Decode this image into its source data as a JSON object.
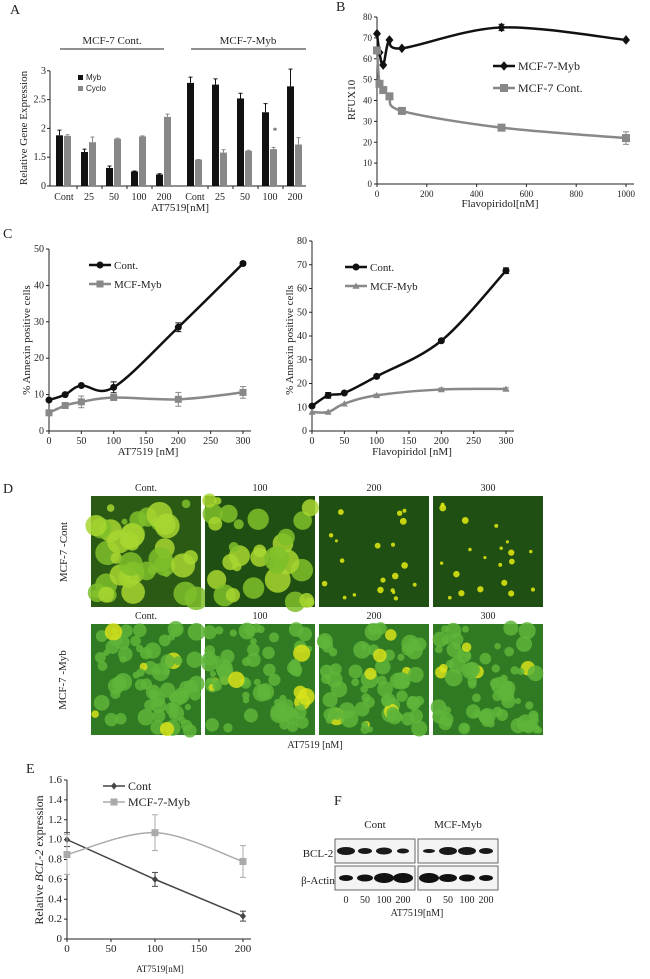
{
  "panel_labels": [
    "A",
    "B",
    "C",
    "D",
    "E",
    "F"
  ],
  "colors": {
    "black": "#111111",
    "gray": "#888888",
    "lightgray": "#aaaaaa",
    "green": "#1f5a16"
  },
  "chart_data": [
    {
      "id": "A",
      "type": "bar",
      "title": "",
      "groups": [
        "MCF-7 Cont.",
        "MCF-7-Myb"
      ],
      "categories": [
        "Cont",
        "25",
        "50",
        "100",
        "200"
      ],
      "ylabel": "Relative Gene Expression",
      "xlabel": "AT7519[nM]",
      "yticks": [
        "0",
        "1.5",
        "2",
        "2.5",
        "3"
      ],
      "legend": [
        "Myb",
        "Cyclo"
      ],
      "legend_position": "top-left",
      "annotation": "*",
      "series": [
        {
          "name": "Myb",
          "group": "MCF-7 Cont.",
          "values": [
            1.88,
            1.59,
            0.94,
            0.76,
            0.6
          ],
          "errors": [
            0.09,
            0.05,
            0.1,
            0.02,
            0.04
          ]
        },
        {
          "name": "Cyclo",
          "group": "MCF-7 Cont.",
          "values": [
            1.87,
            1.76,
            1.82,
            1.86,
            2.2
          ],
          "errors": [
            0.02,
            0.09,
            0.01,
            0.01,
            0.05
          ]
        },
        {
          "name": "Myb",
          "group": "MCF-7-Myb",
          "values": [
            2.79,
            2.76,
            2.52,
            2.28,
            2.73
          ],
          "errors": [
            0.1,
            0.1,
            0.09,
            0.15,
            0.3
          ]
        },
        {
          "name": "Cyclo",
          "group": "MCF-7-Myb",
          "values": [
            1.37,
            1.58,
            1.61,
            1.64,
            1.72
          ],
          "errors": [
            0.01,
            0.05,
            0.01,
            0.03,
            0.12
          ]
        }
      ]
    },
    {
      "id": "B",
      "type": "line",
      "xlabel": "Flavopiridol[nM]",
      "ylabel": "RFUX10",
      "xlim": [
        0,
        1000
      ],
      "ylim": [
        0,
        80
      ],
      "xticks": [
        0,
        200,
        400,
        600,
        800,
        1000
      ],
      "yticks": [
        0,
        10,
        20,
        30,
        40,
        50,
        60,
        70,
        80
      ],
      "legend_position": "center-right",
      "series": [
        {
          "name": "MCF-7-Myb",
          "marker": "diamond",
          "x": [
            0,
            10,
            25,
            50,
            100,
            500,
            1000
          ],
          "y": [
            72,
            63,
            57,
            69,
            65,
            75,
            69
          ],
          "errors": [
            0,
            0,
            0,
            0,
            0,
            1.5,
            0
          ]
        },
        {
          "name": "MCF-7 Cont.",
          "marker": "square",
          "x": [
            0,
            10,
            25,
            50,
            100,
            500,
            1000
          ],
          "y": [
            64,
            48,
            45,
            42,
            35,
            27,
            22
          ],
          "errors": [
            0,
            0,
            0,
            0,
            0,
            0,
            3
          ]
        }
      ]
    },
    {
      "id": "C1",
      "type": "line",
      "xlabel": "AT7519 [nM]",
      "ylabel": "% Annexin positive cells",
      "xlim": [
        0,
        300
      ],
      "ylim": [
        0,
        50
      ],
      "xticks": [
        0,
        50,
        100,
        150,
        200,
        250,
        300
      ],
      "yticks": [
        0,
        10,
        20,
        30,
        40,
        50
      ],
      "legend_position": "top-left",
      "series": [
        {
          "name": "Cont.",
          "marker": "circle",
          "x": [
            0,
            25,
            50,
            100,
            200,
            300
          ],
          "y": [
            8.5,
            10,
            12.5,
            12,
            28.5,
            46
          ],
          "errors": [
            0,
            0,
            0,
            1.5,
            1.2,
            0.5
          ]
        },
        {
          "name": "MCF-Myb",
          "marker": "square",
          "x": [
            0,
            25,
            50,
            100,
            200,
            300
          ],
          "y": [
            5,
            7,
            8,
            9.2,
            8.7,
            10.6
          ],
          "errors": [
            0,
            0.8,
            1.6,
            0.6,
            1.9,
            1.6
          ]
        }
      ]
    },
    {
      "id": "C2",
      "type": "line",
      "xlabel": "Flavopiridol [nM]",
      "ylabel": "% Annexin positive cells",
      "xlim": [
        0,
        300
      ],
      "ylim": [
        0,
        80
      ],
      "xticks": [
        0,
        50,
        100,
        150,
        200,
        250,
        300
      ],
      "yticks": [
        0,
        10,
        20,
        30,
        40,
        50,
        60,
        70,
        80
      ],
      "legend_position": "top-left",
      "series": [
        {
          "name": "Cont.",
          "marker": "circle",
          "x": [
            0,
            25,
            50,
            100,
            200,
            300
          ],
          "y": [
            10.5,
            15,
            16,
            23,
            38,
            67.5
          ],
          "errors": [
            0,
            1.2,
            0.5,
            0.6,
            0.6,
            1.2
          ]
        },
        {
          "name": "MCF-Myb",
          "marker": "triangle",
          "x": [
            0,
            25,
            50,
            100,
            200,
            300
          ],
          "y": [
            8,
            8,
            11.5,
            15,
            17.5,
            17.7
          ],
          "errors": [
            0,
            0,
            0,
            0.5,
            0.6,
            0.5
          ]
        }
      ]
    },
    {
      "id": "E",
      "type": "line",
      "xlabel": "AT7519[nM]",
      "ylabel_pre": "Relative ",
      "ylabel_italic": "BCL-2",
      "ylabel_post": " expression",
      "xlim": [
        0,
        200
      ],
      "ylim": [
        0,
        1.6
      ],
      "xticks": [
        0,
        50,
        100,
        150,
        200
      ],
      "yticks": [
        "0",
        "0.2",
        "0.4",
        "0.6",
        "0.8",
        "1.0",
        "1.2",
        "1.4",
        "1.6"
      ],
      "legend_position": "top-left",
      "series": [
        {
          "name": "Cont",
          "marker": "diamond",
          "x": [
            0,
            100,
            200
          ],
          "y": [
            1.0,
            0.6,
            0.23
          ],
          "errors": [
            0.07,
            0.07,
            0.05
          ]
        },
        {
          "name": "MCF-7-Myb",
          "marker": "square",
          "x": [
            0,
            100,
            200
          ],
          "y": [
            0.85,
            1.07,
            0.78
          ],
          "errors": [
            0.2,
            0.18,
            0.16
          ]
        }
      ]
    }
  ],
  "panel_d": {
    "row_labels": [
      "MCF-7 -Cont",
      "MCF-7 -Myb"
    ],
    "col_labels": [
      "Cont.",
      "100",
      "200",
      "300"
    ],
    "xlabel": "AT7519 [nM]"
  },
  "panel_f": {
    "groups": [
      "Cont",
      "MCF-Myb"
    ],
    "rows": [
      "BCL-2",
      "β-Actin"
    ],
    "lanes": [
      "0",
      "50",
      "100",
      "200"
    ],
    "xlabel": "AT7519[nM]"
  }
}
